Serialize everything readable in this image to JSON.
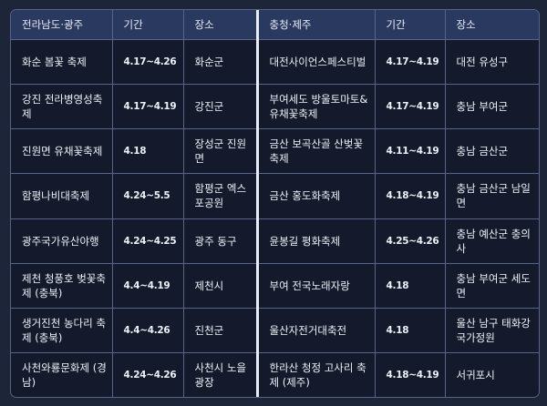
{
  "headers": [
    "전라남도·광주",
    "기간",
    "장소",
    "충청·제주",
    "기간",
    "장소"
  ],
  "rows": [
    [
      "화순 봄꽃 축제",
      "4.17~4.26",
      "화순군",
      "대전사이언스페스티벌",
      "4.17~4.19",
      "대전 유성구"
    ],
    [
      "강진 전라병영성축제",
      "4.17~4.19",
      "강진군",
      "부여세도 방울토마토&유채꽃축제",
      "4.17~4.19",
      "충남 부여군"
    ],
    [
      "진원면 유채꽃축제",
      "4.18",
      "장성군 진원면",
      "금산 보곡산골 산벚꽃 축제",
      "4.11~4.19",
      "충남 금산군"
    ],
    [
      "함평나비대축제",
      "4.24~5.5",
      "함평군 엑스포공원",
      "금산 홍도화축제",
      "4.18~4.19",
      "충남 금산군 남일면"
    ],
    [
      "광주국가유산야행",
      "4.24~4.25",
      "광주 동구",
      "윤봉길 평화축제",
      "4.25~4.26",
      "충남 예산군 충의사"
    ],
    [
      "제천 청풍호 벚꽃축제 (충북)",
      "4.4~4.19",
      "제천시",
      "부여 전국노래자랑",
      "4.18",
      "충남 부여군 세도면"
    ],
    [
      "생거진천 농다리 축제 (충북)",
      "4.4~4.26",
      "진천군",
      "울산자전거대축전",
      "4.18",
      "울산 남구 태화강국가정원"
    ],
    [
      "사천와룡문화제 (경남)",
      "4.24~4.26",
      "사천시 노을광장",
      "한라산 청정 고사리 축제 (제주)",
      "4.18~4.19",
      "서귀포시"
    ]
  ],
  "colors": {
    "background": "#1d2639",
    "header": "#2a3960",
    "body": "#141a2b",
    "border": "#56648a"
  }
}
